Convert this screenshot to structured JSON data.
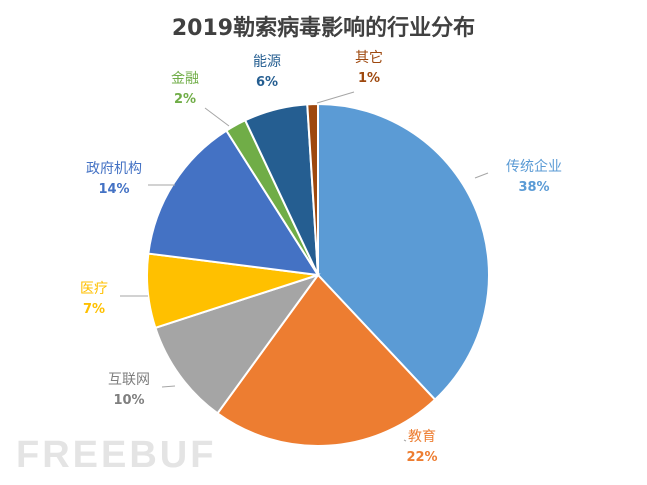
{
  "chart_data": {
    "type": "pie",
    "title": "2019勒索病毒影响的行业分布",
    "slices": [
      {
        "label": "传统企业",
        "value": 38,
        "pct": "38%",
        "color": "#5b9bd5"
      },
      {
        "label": "教育",
        "value": 22,
        "pct": "22%",
        "color": "#ed7d31"
      },
      {
        "label": "互联网",
        "value": 10,
        "pct": "10%",
        "color": "#a5a5a5"
      },
      {
        "label": "医疗",
        "value": 7,
        "pct": "7%",
        "color": "#ffc000"
      },
      {
        "label": "政府机构",
        "value": 14,
        "pct": "14%",
        "color": "#4472c4"
      },
      {
        "label": "金融",
        "value": 2,
        "pct": "2%",
        "color": "#70ad47"
      },
      {
        "label": "能源",
        "value": 6,
        "pct": "6%",
        "color": "#255e91"
      },
      {
        "label": "其它",
        "value": 1,
        "pct": "1%",
        "color": "#9e480e"
      }
    ],
    "label_colors": [
      "#5b9bd5",
      "#ed7d31",
      "#7f7f7f",
      "#ffc000",
      "#4472c4",
      "#70ad47",
      "#255e91",
      "#9e480e"
    ],
    "start_angle": "12 o'clock",
    "direction": "clockwise"
  },
  "watermark": "FREEBUF"
}
